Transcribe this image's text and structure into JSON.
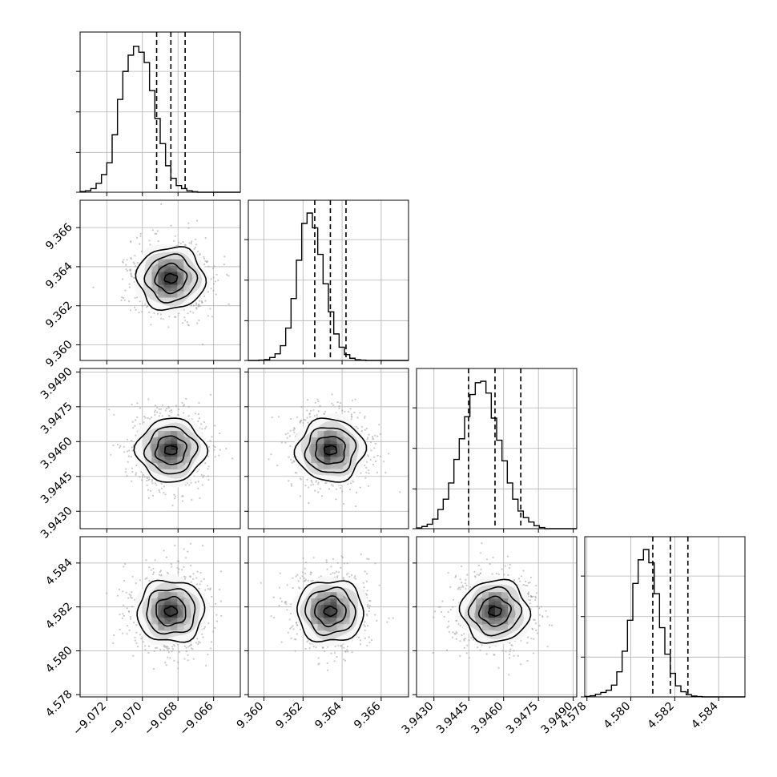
{
  "chart_data": {
    "type": "corner",
    "grid": true,
    "parameters": [
      {
        "id": "p1",
        "range": [
          -9.0735,
          -9.0645
        ],
        "ticks": [
          "−9.072",
          "−9.070",
          "−9.068",
          "−9.066"
        ],
        "tick_values": [
          -9.072,
          -9.07,
          -9.068,
          -9.066
        ],
        "quantiles": [
          -9.0692,
          -9.0684,
          -9.0676
        ],
        "hist": [
          0.005,
          0.01,
          0.025,
          0.06,
          0.12,
          0.2,
          0.39,
          0.63,
          0.82,
          0.93,
          0.99,
          0.95,
          0.88,
          0.69,
          0.5,
          0.33,
          0.18,
          0.095,
          0.045,
          0.025,
          0.01,
          0.004,
          0,
          0,
          0,
          0,
          0,
          0,
          0,
          0
        ]
      },
      {
        "id": "p2",
        "range": [
          9.3592,
          9.3674
        ],
        "ticks": [
          "9.360",
          "9.362",
          "9.364",
          "9.366"
        ],
        "tick_values": [
          9.36,
          9.362,
          9.364,
          9.366
        ],
        "quantiles": [
          9.3626,
          9.3634,
          9.3642
        ],
        "hist": [
          0,
          0,
          0.002,
          0.006,
          0.02,
          0.045,
          0.1,
          0.22,
          0.42,
          0.68,
          0.93,
          1.0,
          0.9,
          0.72,
          0.52,
          0.33,
          0.18,
          0.09,
          0.04,
          0.015,
          0.005,
          0.002,
          0,
          0,
          0,
          0,
          0,
          0,
          0,
          0
        ]
      },
      {
        "id": "p3",
        "range": [
          3.94225,
          3.94915
        ],
        "ticks": [
          "3.9430",
          "3.9445",
          "3.9460",
          "3.9475",
          "3.9490"
        ],
        "tick_values": [
          3.943,
          3.9445,
          3.946,
          3.9475,
          3.949
        ],
        "quantiles": [
          3.94449,
          3.94563,
          3.94674
        ],
        "hist": [
          0.005,
          0.015,
          0.03,
          0.065,
          0.13,
          0.2,
          0.31,
          0.47,
          0.61,
          0.76,
          0.91,
          0.99,
          1.0,
          0.92,
          0.75,
          0.6,
          0.46,
          0.31,
          0.2,
          0.12,
          0.075,
          0.045,
          0.02,
          0.008,
          0,
          0,
          0,
          0,
          0,
          0
        ]
      },
      {
        "id": "p4",
        "range": [
          4.5779,
          4.5852
        ],
        "ticks": [
          "4.578",
          "4.580",
          "4.582",
          "4.584"
        ],
        "tick_values": [
          4.578,
          4.58,
          4.582,
          4.584
        ],
        "quantiles": [
          4.581,
          4.5818,
          4.5826
        ],
        "hist": [
          0.003,
          0.008,
          0.018,
          0.03,
          0.045,
          0.08,
          0.17,
          0.31,
          0.52,
          0.77,
          0.93,
          1.0,
          0.91,
          0.7,
          0.47,
          0.29,
          0.16,
          0.075,
          0.035,
          0.015,
          0.006,
          0.002,
          0,
          0,
          0,
          0,
          0,
          0,
          0,
          0
        ]
      }
    ],
    "scatter_panels": [
      {
        "x": "p1",
        "y": "p2",
        "center": [
          -9.0684,
          9.3634
        ]
      },
      {
        "x": "p1",
        "y": "p3",
        "center": [
          -9.0684,
          3.94563
        ]
      },
      {
        "x": "p2",
        "y": "p3",
        "center": [
          9.3634,
          3.94563
        ]
      },
      {
        "x": "p1",
        "y": "p4",
        "center": [
          -9.0684,
          4.5818
        ]
      },
      {
        "x": "p2",
        "y": "p4",
        "center": [
          9.3634,
          4.5818
        ]
      },
      {
        "x": "p3",
        "y": "p4",
        "center": [
          3.94563,
          4.5818
        ]
      }
    ]
  }
}
